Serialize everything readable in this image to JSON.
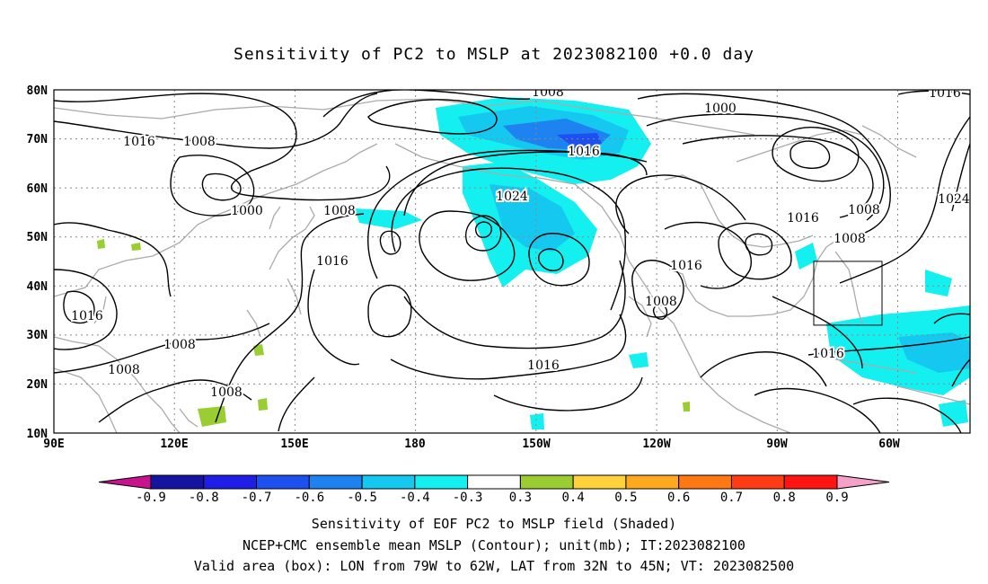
{
  "title": "Sensitivity of PC2 to MSLP at 2023082100 +0.0 day",
  "lat_labels": [
    "80N",
    "70N",
    "60N",
    "50N",
    "40N",
    "30N",
    "20N",
    "10N"
  ],
  "lon_labels": [
    "90E",
    "120E",
    "150E",
    "180",
    "150W",
    "120W",
    "90W",
    "60W"
  ],
  "contour_labels": [
    "1008",
    "1016",
    "1008",
    "1016",
    "1000",
    "1016",
    "1008",
    "1000",
    "1016",
    "1024",
    "1008",
    "1016",
    "1016",
    "1008",
    "1008",
    "1016",
    "1008",
    "1008",
    "1016",
    "1008",
    "1016",
    "1024"
  ],
  "colorbar": {
    "labels": [
      "-0.9",
      "-0.8",
      "-0.7",
      "-0.6",
      "-0.5",
      "-0.4",
      "-0.3",
      "0.3",
      "0.4",
      "0.5",
      "0.6",
      "0.7",
      "0.8",
      "0.9"
    ],
    "colors": [
      "#c8148c",
      "#1414a0",
      "#1e1ee6",
      "#1e50f0",
      "#1e82f0",
      "#14c8f0",
      "#14f0f0",
      "#ffffff",
      "#9acd32",
      "#ffd23c",
      "#ffaa1e",
      "#ff7814",
      "#ff3c14",
      "#ff1414",
      "#f5a0c8"
    ]
  },
  "valid_box": {
    "lon_from": "79W",
    "lon_to": "62W",
    "lat_from": "32N",
    "lat_to": "45N"
  },
  "captions": [
    "Sensitivity of EOF PC2 to MSLP field (Shaded)",
    "NCEP+CMC ensemble mean MSLP (Contour); unit(mb); IT:2023082100",
    "Valid area (box): LON from 79W to 62W, LAT from 32N to 45N; VT: 2023082500"
  ]
}
